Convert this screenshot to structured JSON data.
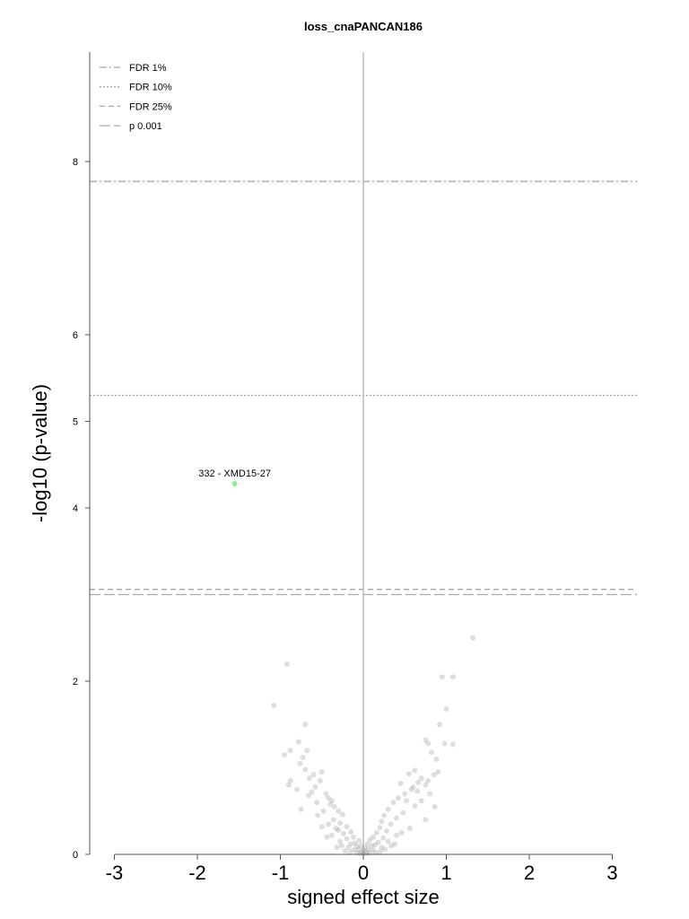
{
  "chart_data": {
    "type": "scatter",
    "title": "loss_cnaPANCAN186",
    "xlabel": "signed effect size",
    "ylabel": "-log10 (p-value)",
    "xlim": [
      -3.3,
      3.3
    ],
    "ylim": [
      0,
      9.2
    ],
    "x_ticks": [
      -3,
      -2,
      -1,
      0,
      1,
      2,
      3
    ],
    "x_tick_labels": [
      "-3",
      "-2",
      "-1",
      "0",
      "1",
      "2",
      "3"
    ],
    "y_ticks": [
      0,
      2,
      4,
      5,
      6,
      8
    ],
    "y_tick_labels": [
      "0",
      "2",
      "4",
      "5",
      "6",
      "8"
    ],
    "grid": false,
    "legend_position": "top-left",
    "threshold_lines": [
      {
        "name": "FDR 1%",
        "y": 7.77,
        "style": "dashdot"
      },
      {
        "name": "FDR 10%",
        "y": 5.3,
        "style": "dotted"
      },
      {
        "name": "FDR 25%",
        "y": 3.06,
        "style": "dashed"
      },
      {
        "name": "p 0.001",
        "y": 3.0,
        "style": "longdash"
      }
    ],
    "vertical_line": {
      "x": 0
    },
    "highlight": {
      "label": "332 - XMD15-27",
      "x": -1.55,
      "y": 4.28,
      "color": "#90ee90"
    },
    "point_color": "#999999",
    "points": [
      [
        1.32,
        2.5
      ],
      [
        -0.92,
        2.2
      ],
      [
        0.95,
        2.05
      ],
      [
        1.08,
        2.05
      ],
      [
        -1.08,
        1.72
      ],
      [
        1.0,
        1.68
      ],
      [
        -0.7,
        1.5
      ],
      [
        0.92,
        1.5
      ],
      [
        -0.78,
        1.3
      ],
      [
        0.75,
        1.32
      ],
      [
        0.78,
        1.28
      ],
      [
        1.08,
        1.27
      ],
      [
        0.98,
        1.28
      ],
      [
        -0.95,
        1.15
      ],
      [
        -0.68,
        1.2
      ],
      [
        0.82,
        1.18
      ],
      [
        -0.88,
        1.2
      ],
      [
        -0.73,
        1.12
      ],
      [
        0.88,
        1.1
      ],
      [
        -0.76,
        1.05
      ],
      [
        -0.7,
        0.98
      ],
      [
        0.62,
        0.97
      ],
      [
        0.9,
        0.95
      ],
      [
        -0.5,
        0.95
      ],
      [
        -0.6,
        0.92
      ],
      [
        0.55,
        0.93
      ],
      [
        0.85,
        0.92
      ],
      [
        -0.65,
        0.88
      ],
      [
        0.7,
        0.88
      ],
      [
        -0.88,
        0.85
      ],
      [
        -0.52,
        0.85
      ],
      [
        0.78,
        0.85
      ],
      [
        0.66,
        0.83
      ],
      [
        -0.9,
        0.8
      ],
      [
        0.45,
        0.82
      ],
      [
        0.75,
        0.8
      ],
      [
        -0.58,
        0.78
      ],
      [
        0.58,
        0.75
      ],
      [
        -0.8,
        0.75
      ],
      [
        0.65,
        0.73
      ],
      [
        -0.62,
        0.72
      ],
      [
        0.5,
        0.7
      ],
      [
        -0.45,
        0.7
      ],
      [
        0.8,
        0.7
      ],
      [
        -0.42,
        0.65
      ],
      [
        0.42,
        0.65
      ],
      [
        -0.38,
        0.62
      ],
      [
        0.36,
        0.6
      ],
      [
        -0.4,
        0.58
      ],
      [
        0.52,
        0.62
      ],
      [
        -0.35,
        0.55
      ],
      [
        0.62,
        0.56
      ],
      [
        -0.3,
        0.5
      ],
      [
        0.3,
        0.52
      ],
      [
        -0.48,
        0.5
      ],
      [
        0.48,
        0.48
      ],
      [
        -0.25,
        0.46
      ],
      [
        0.25,
        0.45
      ],
      [
        -0.55,
        0.45
      ],
      [
        0.4,
        0.42
      ],
      [
        -0.36,
        0.4
      ],
      [
        0.75,
        0.4
      ],
      [
        -0.28,
        0.36
      ],
      [
        0.22,
        0.38
      ],
      [
        -0.42,
        0.35
      ],
      [
        0.33,
        0.35
      ],
      [
        -0.2,
        0.32
      ],
      [
        0.2,
        0.31
      ],
      [
        -0.5,
        0.32
      ],
      [
        0.56,
        0.3
      ],
      [
        -0.3,
        0.28
      ],
      [
        0.28,
        0.27
      ],
      [
        -0.15,
        0.26
      ],
      [
        0.16,
        0.25
      ],
      [
        -0.24,
        0.24
      ],
      [
        0.4,
        0.22
      ],
      [
        -0.38,
        0.22
      ],
      [
        0.12,
        0.2
      ],
      [
        -0.12,
        0.2
      ],
      [
        0.24,
        0.19
      ],
      [
        -0.2,
        0.18
      ],
      [
        0.08,
        0.17
      ],
      [
        -0.05,
        0.16
      ],
      [
        0.3,
        0.15
      ],
      [
        -0.28,
        0.15
      ],
      [
        0.18,
        0.14
      ],
      [
        -0.1,
        0.13
      ],
      [
        0.05,
        0.12
      ],
      [
        -0.15,
        0.12
      ],
      [
        0.14,
        0.11
      ],
      [
        -0.03,
        0.1
      ],
      [
        0.1,
        0.1
      ],
      [
        -0.08,
        0.09
      ],
      [
        0.02,
        0.08
      ],
      [
        -0.18,
        0.08
      ],
      [
        0.22,
        0.08
      ],
      [
        -0.06,
        0.06
      ],
      [
        0.06,
        0.06
      ],
      [
        0.0,
        0.05
      ],
      [
        -0.12,
        0.05
      ],
      [
        0.12,
        0.05
      ],
      [
        -0.02,
        0.03
      ],
      [
        0.03,
        0.03
      ],
      [
        -0.08,
        0.02
      ],
      [
        0.08,
        0.02
      ],
      [
        0.15,
        0.02
      ],
      [
        -0.16,
        0.02
      ],
      [
        0.0,
        0.01
      ],
      [
        -0.04,
        0.01
      ],
      [
        0.04,
        0.01
      ],
      [
        0.2,
        0.03
      ],
      [
        -0.22,
        0.04
      ],
      [
        0.26,
        0.06
      ],
      [
        -0.32,
        0.08
      ],
      [
        0.34,
        0.1
      ],
      [
        -0.26,
        0.1
      ],
      [
        0.38,
        0.12
      ],
      [
        -0.44,
        0.2
      ],
      [
        0.46,
        0.25
      ],
      [
        -0.33,
        0.3
      ],
      [
        0.7,
        0.62
      ],
      [
        -0.66,
        0.68
      ],
      [
        0.6,
        0.78
      ],
      [
        -0.56,
        0.6
      ],
      [
        0.86,
        0.55
      ],
      [
        -0.75,
        0.52
      ]
    ]
  }
}
